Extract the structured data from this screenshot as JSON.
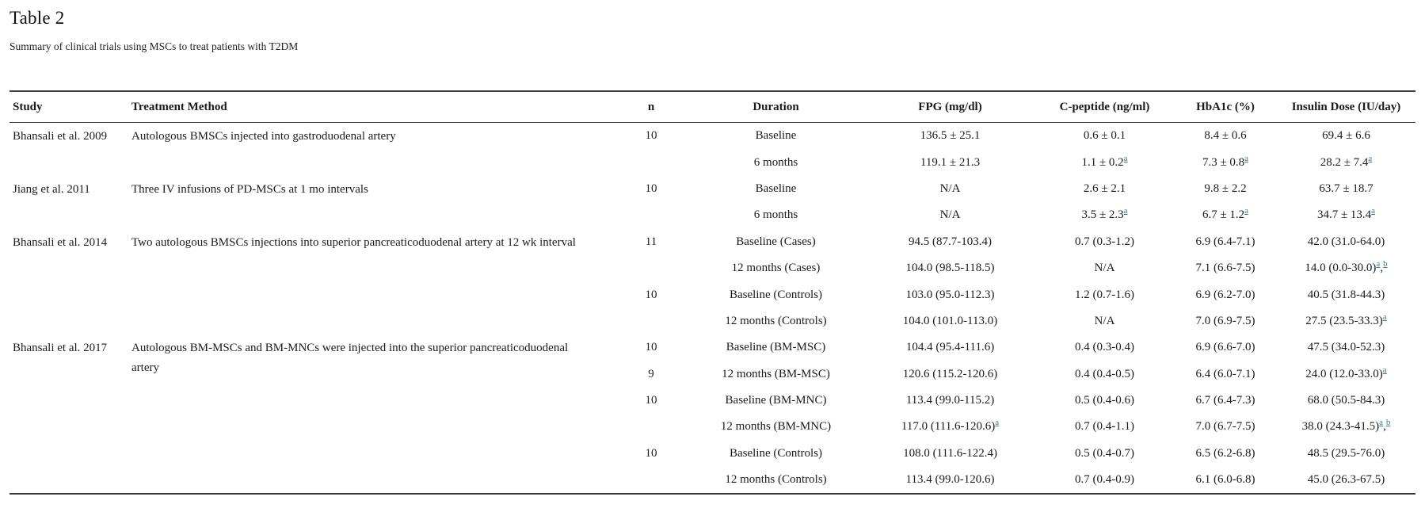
{
  "title": "Table 2",
  "subtitle": "Summary of clinical trials using MSCs to treat patients with T2DM",
  "colors": {
    "text": "#1b1b1b",
    "footnote_link": "#3f7899",
    "rule": "#3d3d3d"
  },
  "table": {
    "columns": [
      {
        "id": "study",
        "label": "Study",
        "align": "left"
      },
      {
        "id": "method",
        "label": "Treatment Method",
        "align": "left"
      },
      {
        "id": "n",
        "label": "n",
        "align": "center"
      },
      {
        "id": "duration",
        "label": "Duration",
        "align": "center"
      },
      {
        "id": "fpg",
        "label": "FPG (mg/dl)",
        "align": "center"
      },
      {
        "id": "cpeptide",
        "label": "C-peptide (ng/ml)",
        "align": "center"
      },
      {
        "id": "hba1c",
        "label": "HbA1c (%)",
        "align": "center"
      },
      {
        "id": "insulin",
        "label": "Insulin Dose (IU/day)",
        "align": "center"
      }
    ],
    "groups": [
      {
        "study": "Bhansali et al. 2009",
        "method": "Autologous BMSCs injected into gastroduodenal artery",
        "rows": [
          {
            "n": "10",
            "duration": "Baseline",
            "fpg": "136.5 ± 25.1",
            "cpeptide": "0.6 ± 0.1",
            "hba1c": "8.4 ± 0.6",
            "insulin": "69.4 ± 6.6"
          },
          {
            "n": "",
            "duration": "6 months",
            "fpg": "119.1 ± 21.3",
            "cpeptide": {
              "v": "1.1 ± 0.2",
              "sup": [
                "a"
              ]
            },
            "hba1c": {
              "v": "7.3 ± 0.8",
              "sup": [
                "a"
              ]
            },
            "insulin": {
              "v": "28.2 ± 7.4",
              "sup": [
                "a"
              ]
            }
          }
        ]
      },
      {
        "study": "Jiang et al. 2011",
        "method": "Three IV infusions of PD-MSCs at 1 mo intervals",
        "rows": [
          {
            "n": "10",
            "duration": "Baseline",
            "fpg": "N/A",
            "cpeptide": "2.6 ± 2.1",
            "hba1c": "9.8 ± 2.2",
            "insulin": "63.7 ± 18.7"
          },
          {
            "n": "",
            "duration": "6 months",
            "fpg": "N/A",
            "cpeptide": {
              "v": "3.5 ± 2.3",
              "sup": [
                "a"
              ]
            },
            "hba1c": {
              "v": "6.7 ± 1.2",
              "sup": [
                "a"
              ]
            },
            "insulin": {
              "v": "34.7 ± 13.4",
              "sup": [
                "a"
              ]
            }
          }
        ]
      },
      {
        "study": "Bhansali et al. 2014",
        "method": "Two autologous BMSCs injections into superior pancreaticoduodenal artery at 12 wk interval",
        "rows": [
          {
            "n": "11",
            "duration": "Baseline (Cases)",
            "fpg": "94.5 (87.7-103.4)",
            "cpeptide": "0.7 (0.3-1.2)",
            "hba1c": "6.9 (6.4-7.1)",
            "insulin": "42.0 (31.0-64.0)"
          },
          {
            "n": "",
            "duration": "12 months (Cases)",
            "fpg": "104.0 (98.5-118.5)",
            "cpeptide": "N/A",
            "hba1c": "7.1 (6.6-7.5)",
            "insulin": {
              "v": "14.0 (0.0-30.0)",
              "sup": [
                "a",
                "b"
              ]
            }
          },
          {
            "n": "10",
            "duration": "Baseline (Controls)",
            "fpg": "103.0 (95.0-112.3)",
            "cpeptide": "1.2 (0.7-1.6)",
            "hba1c": "6.9 (6.2-7.0)",
            "insulin": "40.5 (31.8-44.3)"
          },
          {
            "n": "",
            "duration": "12 months (Controls)",
            "fpg": "104.0 (101.0-113.0)",
            "cpeptide": "N/A",
            "hba1c": "7.0 (6.9-7.5)",
            "insulin": {
              "v": "27.5 (23.5-33.3)",
              "sup": [
                "a"
              ]
            }
          }
        ]
      },
      {
        "study": "Bhansali et al. 2017",
        "method": "Autologous BM-MSCs and BM-MNCs were injected into the superior pancreaticoduodenal artery",
        "rows": [
          {
            "n": "10",
            "duration": "Baseline (BM-MSC)",
            "fpg": "104.4 (95.4-111.6)",
            "cpeptide": "0.4 (0.3-0.4)",
            "hba1c": "6.9 (6.6-7.0)",
            "insulin": "47.5 (34.0-52.3)"
          },
          {
            "n": "9",
            "duration": "12 months (BM-MSC)",
            "fpg": "120.6 (115.2-120.6)",
            "cpeptide": "0.4 (0.4-0.5)",
            "hba1c": "6.4 (6.0-7.1)",
            "insulin": {
              "v": "24.0 (12.0-33.0)",
              "sup": [
                "a"
              ]
            }
          },
          {
            "n": "10",
            "duration": "Baseline (BM-MNC)",
            "fpg": "113.4 (99.0-115.2)",
            "cpeptide": "0.5 (0.4-0.6)",
            "hba1c": "6.7 (6.4-7.3)",
            "insulin": "68.0 (50.5-84.3)"
          },
          {
            "n": "",
            "duration": "12 months (BM-MNC)",
            "fpg": {
              "v": "117.0 (111.6-120.6)",
              "sup": [
                "a"
              ]
            },
            "cpeptide": "0.7 (0.4-1.1)",
            "hba1c": "7.0 (6.7-7.5)",
            "insulin": {
              "v": "38.0 (24.3-41.5)",
              "sup": [
                "a",
                "b"
              ]
            }
          },
          {
            "n": "10",
            "duration": "Baseline (Controls)",
            "fpg": "108.0 (111.6-122.4)",
            "cpeptide": "0.5 (0.4-0.7)",
            "hba1c": "6.5 (6.2-6.8)",
            "insulin": "48.5 (29.5-76.0)"
          },
          {
            "n": "",
            "duration": "12 months (Controls)",
            "fpg": "113.4 (99.0-120.6)",
            "cpeptide": "0.7 (0.4-0.9)",
            "hba1c": "6.1 (6.0-6.8)",
            "insulin": "45.0 (26.3-67.5)"
          }
        ]
      }
    ]
  }
}
